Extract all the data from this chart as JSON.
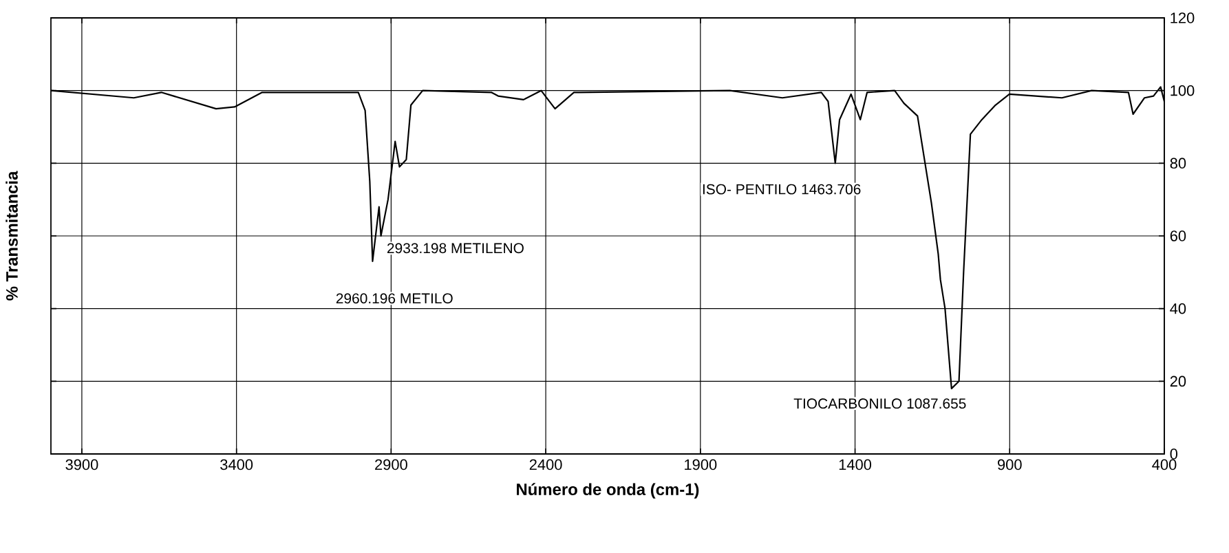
{
  "chart_data": {
    "type": "line",
    "xlabel": "Número de onda (cm-1)",
    "ylabel": "% Transmitancia",
    "xlim": [
      4000,
      400
    ],
    "ylim": [
      0,
      120
    ],
    "xticks": [
      3900,
      3400,
      2900,
      2400,
      1900,
      1400,
      900,
      400
    ],
    "yticks": [
      0,
      20,
      40,
      60,
      80,
      100,
      120
    ],
    "grid": true,
    "marker": "none",
    "line_style": "solid",
    "series": [
      {
        "color": "#000000",
        "x": [
          4000,
          3732,
          3643,
          3466,
          3406,
          3317,
          3006,
          2984,
          2969,
          2960,
          2939,
          2933,
          2910,
          2887,
          2873,
          2851,
          2836,
          2798,
          2576,
          2554,
          2472,
          2415,
          2370,
          2309,
          2295,
          1805,
          1635,
          1509,
          1487,
          1464,
          1450,
          1413,
          1383,
          1361,
          1272,
          1242,
          1198,
          1153,
          1131,
          1124,
          1109,
          1088,
          1064,
          1049,
          1027,
          990,
          946,
          901,
          731,
          635,
          516,
          501,
          464,
          435,
          412,
          400
        ],
        "values": [
          100,
          98,
          99.5,
          95,
          95.5,
          99.5,
          99.5,
          94.5,
          75,
          53,
          68,
          60,
          70,
          86,
          79,
          81,
          96,
          100,
          99.5,
          98.5,
          97.5,
          100,
          95,
          99.5,
          99.5,
          100,
          98,
          99.5,
          97,
          80,
          92,
          99,
          92,
          99.5,
          100,
          96.5,
          93,
          69,
          55,
          48,
          40,
          18,
          20,
          50,
          88,
          92,
          96,
          99,
          98,
          100,
          99.5,
          93.5,
          98,
          98.5,
          101,
          97
        ]
      }
    ],
    "annotations": [
      {
        "text": "2933.198 METILENO",
        "x": 2933,
        "y": 60
      },
      {
        "text": "2960.196 METILO",
        "x": 2960,
        "y": 53
      },
      {
        "text": "ISO- PENTILO 1463.706",
        "x": 1464,
        "y": 80
      },
      {
        "text": "TIOCARBONILO 1087.655",
        "x": 1088,
        "y": 18
      }
    ]
  }
}
